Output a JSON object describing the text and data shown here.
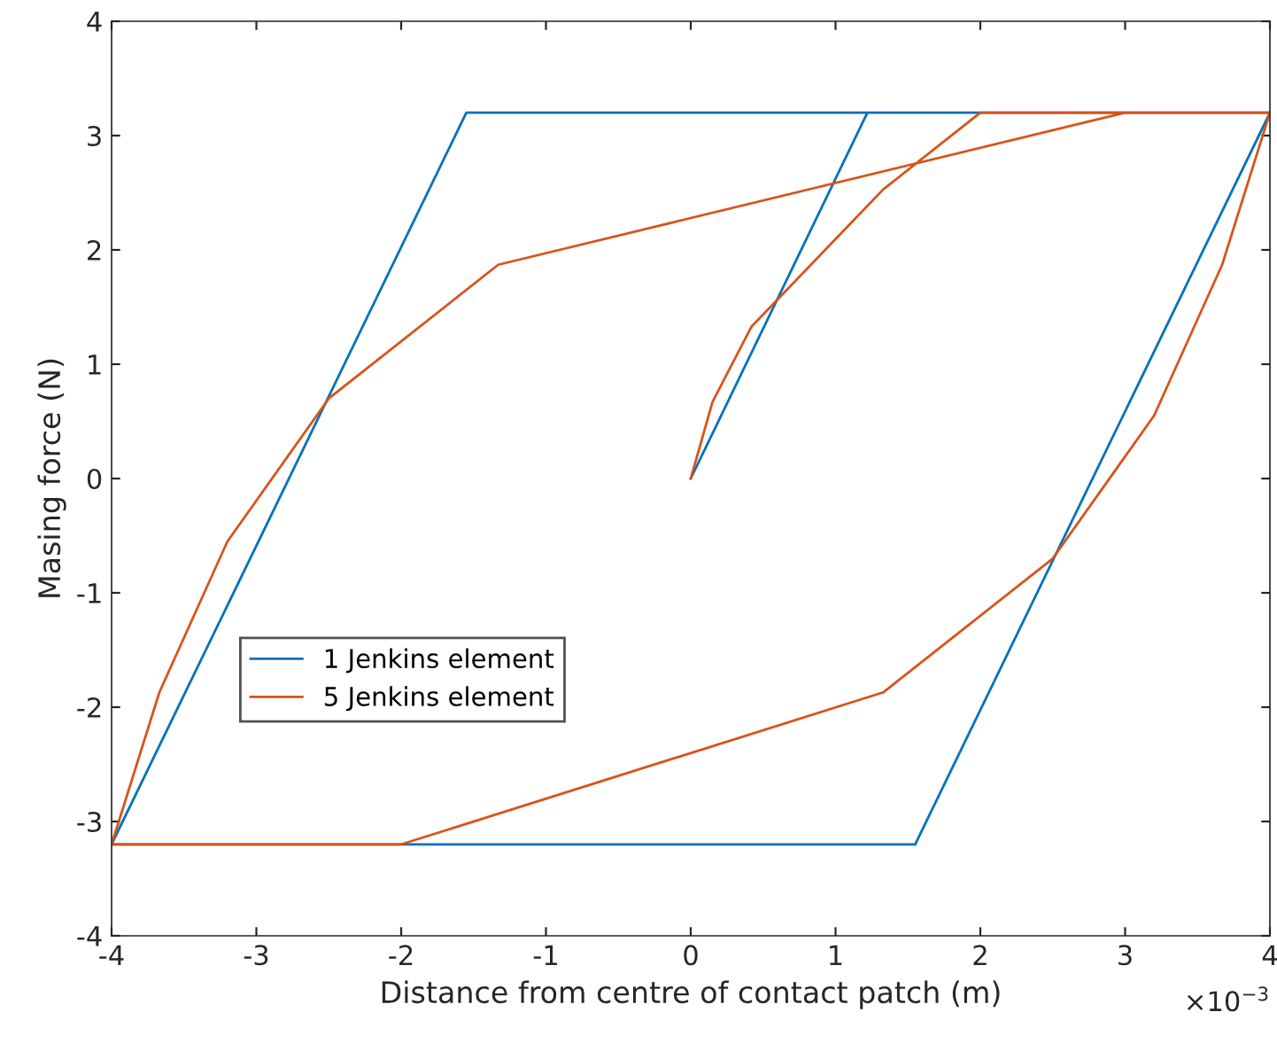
{
  "chart_data": {
    "type": "line",
    "xlabel": "Distance from centre of contact patch (m)",
    "ylabel": "Masing force (N)",
    "xlim": [
      -4,
      4
    ],
    "xticks": [
      -4,
      -3,
      -2,
      -1,
      0,
      1,
      2,
      3,
      4
    ],
    "ylim": [
      -4,
      4
    ],
    "yticks": [
      -4,
      -3,
      -2,
      -1,
      0,
      1,
      2,
      3,
      4
    ],
    "annotations": [
      "×10$^{−3}$"
    ],
    "legend": "left",
    "grid": false,
    "line_style": "solid",
    "marker": "none",
    "series": [
      {
        "name": "1 Jenkins element",
        "color": "#0072bd",
        "x": [
          0,
          1.22,
          4,
          1.55,
          -4,
          -1.55,
          4,
          1.55
        ],
        "values": [
          0,
          3.2,
          3.2,
          -3.2,
          -3.2,
          3.2,
          3.2,
          -3.2
        ]
      },
      {
        "name": "5 Jenkins element",
        "color": "#d95319",
        "x": [
          0,
          0.15,
          0.42,
          1.33,
          2,
          4,
          3.67,
          3.2,
          2.5,
          1.33,
          -2,
          -4,
          -3.67,
          -3.2,
          -2.5,
          -1.33,
          3,
          4,
          3.67,
          3.2,
          2.5,
          1.33
        ],
        "values": [
          0,
          0.67,
          1.33,
          2.53,
          3.2,
          3.2,
          1.87,
          0.55,
          -0.7,
          -1.87,
          -3.2,
          -3.2,
          -1.87,
          -0.55,
          0.7,
          1.87,
          3.2,
          3.2,
          1.87,
          0.55,
          -0.7,
          -1.87
        ]
      }
    ]
  }
}
